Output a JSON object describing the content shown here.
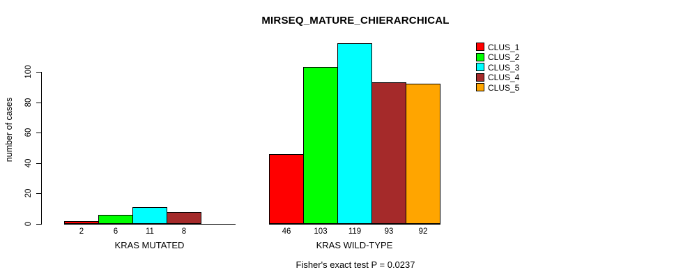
{
  "chart_data": {
    "type": "bar",
    "title": "MIRSEQ_MATURE_CHIERARCHICAL",
    "ylabel": "number of cases",
    "xlabel": "",
    "ylim": [
      0,
      119
    ],
    "yticks": [
      0,
      20,
      40,
      60,
      80,
      100
    ],
    "grid": false,
    "legend_position": "top-right",
    "annotation": "Fisher's exact test P = 0.0237",
    "categories": [
      "KRAS MUTATED",
      "KRAS WILD-TYPE"
    ],
    "series": [
      {
        "name": "CLUS_1",
        "color": "#FF0000",
        "values": [
          2,
          46
        ]
      },
      {
        "name": "CLUS_2",
        "color": "#00FF00",
        "values": [
          6,
          103
        ]
      },
      {
        "name": "CLUS_3",
        "color": "#00FFFF",
        "values": [
          11,
          119
        ]
      },
      {
        "name": "CLUS_4",
        "color": "#A52A2A",
        "values": [
          8,
          93
        ]
      },
      {
        "name": "CLUS_5",
        "color": "#FFA500",
        "values": [
          0,
          92
        ]
      }
    ],
    "groups": [
      {
        "label": "KRAS MUTATED",
        "bars": [
          {
            "cluster": "CLUS_1",
            "value": 2,
            "color": "#FF0000"
          },
          {
            "cluster": "CLUS_2",
            "value": 6,
            "color": "#00FF00"
          },
          {
            "cluster": "CLUS_3",
            "value": 11,
            "color": "#00FFFF"
          },
          {
            "cluster": "CLUS_4",
            "value": 8,
            "color": "#A52A2A"
          }
        ]
      },
      {
        "label": "KRAS WILD-TYPE",
        "bars": [
          {
            "cluster": "CLUS_1",
            "value": 46,
            "color": "#FF0000"
          },
          {
            "cluster": "CLUS_2",
            "value": 103,
            "color": "#00FF00"
          },
          {
            "cluster": "CLUS_3",
            "value": 119,
            "color": "#00FFFF"
          },
          {
            "cluster": "CLUS_4",
            "value": 93,
            "color": "#A52A2A"
          },
          {
            "cluster": "CLUS_5",
            "value": 92,
            "color": "#FFA500"
          }
        ]
      }
    ]
  },
  "legend": {
    "items": [
      {
        "label": "CLUS_1",
        "color": "#FF0000"
      },
      {
        "label": "CLUS_2",
        "color": "#00FF00"
      },
      {
        "label": "CLUS_3",
        "color": "#00FFFF"
      },
      {
        "label": "CLUS_4",
        "color": "#A52A2A"
      },
      {
        "label": "CLUS_5",
        "color": "#FFA500"
      }
    ]
  },
  "colors": {
    "foreground": "#000000",
    "background": "#FFFFFF"
  }
}
